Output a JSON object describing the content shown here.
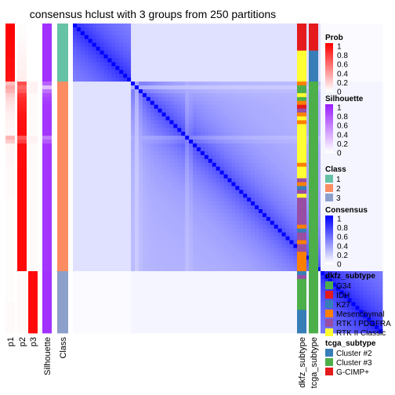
{
  "chart_data": {
    "type": "heatmap",
    "title": "consensus hclust with 3 groups from 250 partitions",
    "n_samples": 80,
    "columns": {
      "p1": [
        0.99,
        0.99,
        0.99,
        0.98,
        0.98,
        0.97,
        0.97,
        0.96,
        0.96,
        0.95,
        0.95,
        0.95,
        0.94,
        0.94,
        0.93,
        0.25,
        0.35,
        0.3,
        0.2,
        0.15,
        0.12,
        0.1,
        0.08,
        0.06,
        0.05,
        0.04,
        0.04,
        0.03,
        0.03,
        0.3,
        0.2,
        0.04,
        0.04,
        0.03,
        0.03,
        0.03,
        0.03,
        0.02,
        0.02,
        0.02,
        0.02,
        0.02,
        0.02,
        0.02,
        0.02,
        0.01,
        0.01,
        0.01,
        0.01,
        0.01,
        0.01,
        0.01,
        0.01,
        0.01,
        0.01,
        0.01,
        0.01,
        0.01,
        0.01,
        0.01,
        0.01,
        0.01,
        0.01,
        0.01,
        0.01,
        0.01,
        0.01,
        0.01,
        0.01,
        0.01,
        0.01,
        0.01,
        0.02,
        0.02,
        0.02,
        0.02,
        0.02,
        0.02,
        0.02,
        0.02
      ],
      "p2": [
        0.01,
        0.01,
        0.01,
        0.02,
        0.02,
        0.03,
        0.03,
        0.04,
        0.04,
        0.05,
        0.05,
        0.05,
        0.06,
        0.06,
        0.07,
        0.7,
        0.6,
        0.65,
        0.78,
        0.83,
        0.86,
        0.88,
        0.9,
        0.92,
        0.93,
        0.94,
        0.94,
        0.95,
        0.95,
        0.65,
        0.75,
        0.94,
        0.94,
        0.95,
        0.95,
        0.95,
        0.95,
        0.96,
        0.96,
        0.96,
        0.96,
        0.96,
        0.96,
        0.96,
        0.96,
        0.97,
        0.97,
        0.97,
        0.97,
        0.97,
        0.97,
        0.97,
        0.97,
        0.97,
        0.97,
        0.97,
        0.97,
        0.97,
        0.97,
        0.97,
        0.97,
        0.97,
        0.97,
        0.97,
        0.02,
        0.02,
        0.02,
        0.02,
        0.02,
        0.02,
        0.02,
        0.02,
        0.02,
        0.02,
        0.02,
        0.02,
        0.02,
        0.02,
        0.02,
        0.02
      ],
      "p3": [
        0.0,
        0.0,
        0.0,
        0.0,
        0.0,
        0.0,
        0.0,
        0.0,
        0.0,
        0.0,
        0.0,
        0.0,
        0.0,
        0.0,
        0.0,
        0.05,
        0.05,
        0.05,
        0.02,
        0.02,
        0.02,
        0.02,
        0.02,
        0.02,
        0.02,
        0.02,
        0.02,
        0.02,
        0.02,
        0.05,
        0.05,
        0.02,
        0.02,
        0.02,
        0.02,
        0.02,
        0.02,
        0.02,
        0.02,
        0.02,
        0.02,
        0.02,
        0.02,
        0.02,
        0.02,
        0.02,
        0.02,
        0.02,
        0.02,
        0.02,
        0.02,
        0.02,
        0.02,
        0.02,
        0.02,
        0.02,
        0.02,
        0.02,
        0.02,
        0.02,
        0.02,
        0.02,
        0.02,
        0.02,
        0.96,
        0.96,
        0.96,
        0.96,
        0.96,
        0.96,
        0.96,
        0.96,
        0.96,
        0.96,
        0.96,
        0.96,
        0.96,
        0.96,
        0.96,
        0.96
      ],
      "Silhouette": [
        0.92,
        0.92,
        0.92,
        0.92,
        0.92,
        0.92,
        0.92,
        0.92,
        0.92,
        0.92,
        0.92,
        0.92,
        0.92,
        0.92,
        0.92,
        0.7,
        0.3,
        0.65,
        0.8,
        0.85,
        0.88,
        0.9,
        0.9,
        0.9,
        0.9,
        0.9,
        0.9,
        0.9,
        0.9,
        0.6,
        0.75,
        0.9,
        0.9,
        0.9,
        0.9,
        0.9,
        0.9,
        0.9,
        0.9,
        0.9,
        0.9,
        0.9,
        0.9,
        0.9,
        0.9,
        0.9,
        0.9,
        0.9,
        0.9,
        0.9,
        0.9,
        0.9,
        0.9,
        0.9,
        0.9,
        0.9,
        0.9,
        0.9,
        0.9,
        0.9,
        0.9,
        0.9,
        0.9,
        0.9,
        0.92,
        0.92,
        0.92,
        0.92,
        0.92,
        0.92,
        0.92,
        0.92,
        0.92,
        0.92,
        0.92,
        0.92,
        0.92,
        0.92,
        0.92,
        0.92
      ],
      "Class": [
        1,
        1,
        1,
        1,
        1,
        1,
        1,
        1,
        1,
        1,
        1,
        1,
        1,
        1,
        1,
        2,
        2,
        2,
        2,
        2,
        2,
        2,
        2,
        2,
        2,
        2,
        2,
        2,
        2,
        2,
        2,
        2,
        2,
        2,
        2,
        2,
        2,
        2,
        2,
        2,
        2,
        2,
        2,
        2,
        2,
        2,
        2,
        2,
        2,
        2,
        2,
        2,
        2,
        2,
        2,
        2,
        2,
        2,
        2,
        2,
        2,
        2,
        2,
        2,
        3,
        3,
        3,
        3,
        3,
        3,
        3,
        3,
        3,
        3,
        3,
        3,
        3,
        3,
        3,
        3
      ],
      "dkfz_subtype": [
        "IDH",
        "IDH",
        "IDH",
        "IDH",
        "IDH",
        "IDH",
        "IDH",
        "RTK II Classic",
        "RTK II Classic",
        "RTK II Classic",
        "RTK II Classic",
        "RTK II Classic",
        "RTK II Classic",
        "RTK II Classic",
        "RTK II Classic",
        "Mesenchymal",
        "G34",
        "G34",
        "RTK II Classic",
        "G34",
        "Mesenchymal",
        "IDH",
        "RTK I PDGFRA",
        "Mesenchymal",
        "RTK II Classic",
        "Mesenchymal",
        "RTK II Classic",
        "RTK II Classic",
        "RTK II Classic",
        "RTK II Classic",
        "RTK II Classic",
        "RTK II Classic",
        "RTK II Classic",
        "RTK II Classic",
        "RTK II Classic",
        "RTK II Classic",
        "Mesenchymal",
        "RTK II Classic",
        "RTK II Classic",
        "RTK II Classic",
        "RTK I PDGFRA",
        "Mesenchymal",
        "K27",
        "RTK I PDGFRA",
        "RTK II Classic",
        "RTK I PDGFRA",
        "RTK I PDGFRA",
        "RTK I PDGFRA",
        "RTK I PDGFRA",
        "RTK I PDGFRA",
        "RTK I PDGFRA",
        "RTK I PDGFRA",
        "Mesenchymal",
        "K27",
        "RTK I PDGFRA",
        "RTK I PDGFRA",
        "Mesenchymal",
        "RTK I PDGFRA",
        "RTK I PDGFRA",
        "Mesenchymal",
        "Mesenchymal",
        "Mesenchymal",
        "Mesenchymal",
        "Mesenchymal",
        "K27",
        "RTK I PDGFRA",
        "G34",
        "G34",
        "G34",
        "G34",
        "G34",
        "G34",
        "G34",
        "G34",
        "K27",
        "K27",
        "K27",
        "K27",
        "K27",
        "K27"
      ],
      "tcga_subtype": [
        "G-CIMP+",
        "G-CIMP+",
        "G-CIMP+",
        "G-CIMP+",
        "G-CIMP+",
        "G-CIMP+",
        "G-CIMP+",
        "Cluster #2",
        "Cluster #2",
        "Cluster #2",
        "Cluster #2",
        "Cluster #2",
        "Cluster #2",
        "Cluster #2",
        "Cluster #2",
        "Cluster #3",
        "Cluster #3",
        "Cluster #3",
        "Cluster #3",
        "Cluster #3",
        "Cluster #3",
        "Cluster #3",
        "Cluster #3",
        "Cluster #3",
        "Cluster #3",
        "Cluster #3",
        "Cluster #3",
        "Cluster #3",
        "Cluster #3",
        "Cluster #3",
        "Cluster #3",
        "Cluster #3",
        "Cluster #3",
        "Cluster #3",
        "Cluster #3",
        "Cluster #3",
        "Cluster #3",
        "Cluster #3",
        "Cluster #3",
        "Cluster #3",
        "Cluster #3",
        "Cluster #3",
        "Cluster #3",
        "Cluster #3",
        "Cluster #3",
        "Cluster #3",
        "Cluster #3",
        "Cluster #3",
        "Cluster #3",
        "Cluster #3",
        "Cluster #3",
        "Cluster #3",
        "Cluster #3",
        "Cluster #3",
        "Cluster #3",
        "Cluster #3",
        "Cluster #3",
        "Cluster #3",
        "Cluster #3",
        "Cluster #3",
        "Cluster #3",
        "Cluster #3",
        "Cluster #3",
        "Cluster #3",
        "Cluster #3",
        "Cluster #3",
        "Cluster #3",
        "Cluster #3",
        "Cluster #3",
        "Cluster #3",
        "Cluster #3",
        "Cluster #3",
        "Cluster #3",
        "Cluster #3",
        "Cluster #3",
        "Cluster #3",
        "Cluster #3",
        "Cluster #3",
        "Cluster #3",
        "Cluster #3"
      ]
    },
    "consensus_blocks": [
      {
        "range": [
          0,
          14
        ],
        "within": 0.65
      },
      {
        "range": [
          15,
          63
        ],
        "within": 0.45
      },
      {
        "range": [
          64,
          79
        ],
        "within": 0.72
      }
    ],
    "consensus_between": [
      {
        "a": [
          0,
          14
        ],
        "b": [
          15,
          63
        ],
        "value": 0.12
      },
      {
        "a": [
          0,
          14
        ],
        "b": [
          64,
          79
        ],
        "value": 0.02
      },
      {
        "a": [
          15,
          63
        ],
        "b": [
          64,
          79
        ],
        "value": 0.04
      }
    ],
    "column_labels": [
      "p1",
      "p2",
      "p3",
      "Silhouette",
      "Class",
      "dkfz_subtype",
      "tcga_subtype"
    ],
    "legends": [
      {
        "title": "Prob",
        "type": "continuous",
        "ticks": [
          "1",
          "0.8",
          "0.6",
          "0.4",
          "0.2",
          "0"
        ],
        "colors": [
          "#ffffff",
          "#ff0000"
        ]
      },
      {
        "title": "Silhouette",
        "type": "continuous",
        "ticks": [
          "1",
          "0.8",
          "0.6",
          "0.4",
          "0.2",
          "0"
        ],
        "colors": [
          "#ffffff",
          "#9a1fff"
        ]
      },
      {
        "title": "Class",
        "type": "discrete",
        "items": [
          {
            "label": "1",
            "color": "#66c2a5"
          },
          {
            "label": "2",
            "color": "#fc8d62"
          },
          {
            "label": "3",
            "color": "#8da0cb"
          }
        ]
      },
      {
        "title": "Consensus",
        "type": "continuous",
        "ticks": [
          "1",
          "0.8",
          "0.6",
          "0.4",
          "0.2",
          "0"
        ],
        "colors": [
          "#ffffff",
          "#0000ff"
        ]
      },
      {
        "title": "dkfz_subtype",
        "type": "discrete",
        "items": [
          {
            "label": "G34",
            "color": "#4daf4a"
          },
          {
            "label": "IDH",
            "color": "#e41a1c"
          },
          {
            "label": "K27",
            "color": "#377eb8"
          },
          {
            "label": "Mesenchymal",
            "color": "#ff7f00"
          },
          {
            "label": "RTK I PDGFRA",
            "color": "#984ea3"
          },
          {
            "label": "RTK II Classic",
            "color": "#ffff33"
          }
        ]
      },
      {
        "title": "tcga_subtype",
        "type": "discrete",
        "items": [
          {
            "label": "Cluster #2",
            "color": "#377eb8"
          },
          {
            "label": "Cluster #3",
            "color": "#4daf4a"
          },
          {
            "label": "G-CIMP+",
            "color": "#e41a1c"
          }
        ]
      }
    ]
  }
}
